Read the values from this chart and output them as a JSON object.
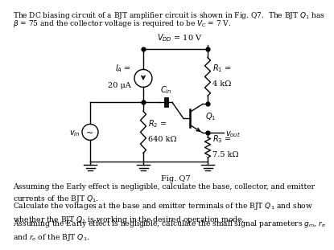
{
  "bg_color": "#ffffff",
  "text_color": "#000000",
  "line_color": "#000000",
  "title_line1": "The DC biasing circuit of a BJT amplifier circuit is shown in Fig. Q7.  The BJT $Q_1$ has",
  "title_line2": "$\\beta$ = 75 and the collector voltage is required to be $V_C$ = 7 V.",
  "vdd_label": "$V_{DD}$ = 10 V",
  "ia_label1": "$I_A$ =",
  "ia_label2": "20 μA",
  "r1_label1": "$R_1$ =",
  "r1_label2": "4 kΩ",
  "r2_label1": "$R_2$ =",
  "r2_label2": "640 kΩ",
  "r3_label1": "$R_3$ =",
  "r3_label2": "7.5 kΩ",
  "q1_label": "$Q_1$",
  "cin_label": "$C_{in}$",
  "vin_label": "$v_{in}$",
  "vout_label": "$v_{out}$",
  "fig_label": "Fig. Q7",
  "q1_text": "Assuming the Early effect is negligible, calculate the base, collector, and emitter\ncurrents of the BJT $Q_1$.",
  "q2_text": "Calculate the voltages at the base and emitter terminals of the BJT $Q_1$ and show\nwhether the BJT $Q_1$ is working in the desired operation mode.",
  "q3_text": "Assuming the Early effect is negligible, calculate the small signal parameters $g_m$, $r_\\pi$\nand $r_o$ of the BJT $Q_1$."
}
